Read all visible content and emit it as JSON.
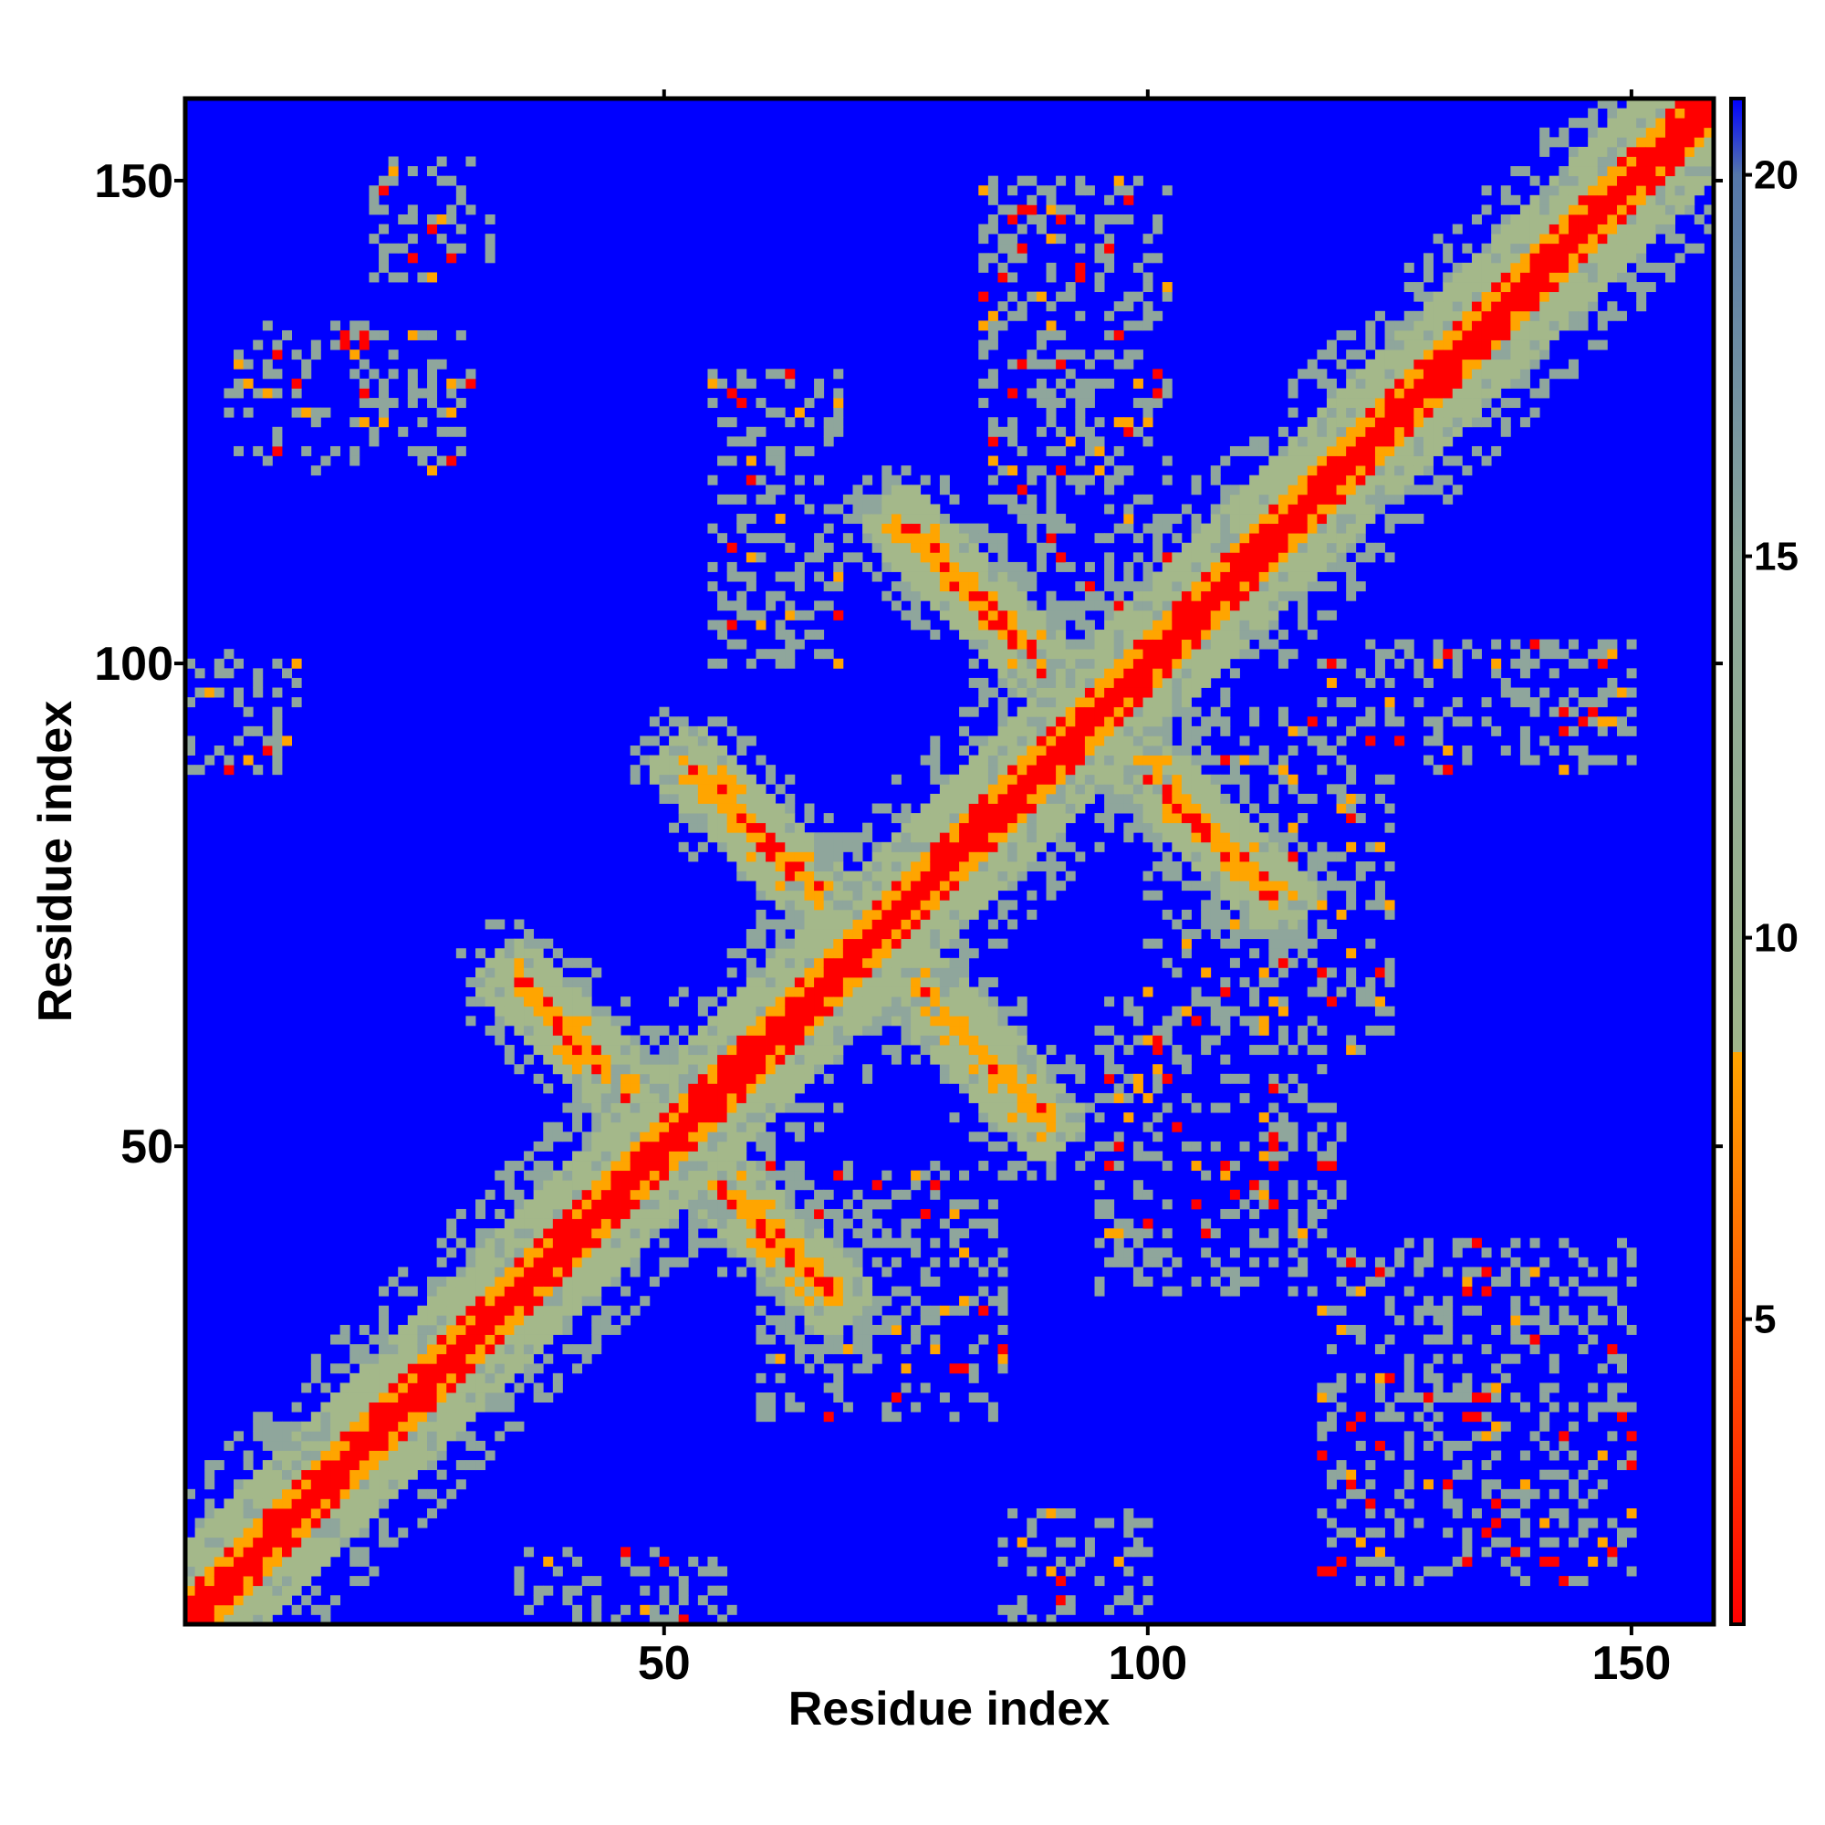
{
  "chart_data": {
    "type": "heatmap",
    "title": "",
    "xlabel": "Residue index",
    "ylabel": "Residue index",
    "xlim": [
      1,
      158
    ],
    "ylim": [
      1,
      158
    ],
    "x_ticks": [
      50,
      100,
      150
    ],
    "y_ticks": [
      50,
      100,
      150
    ],
    "colorbar": {
      "range": [
        1,
        21
      ],
      "ticks": [
        5,
        10,
        15,
        20
      ],
      "stops": [
        {
          "value": 1,
          "color": "#ff0000"
        },
        {
          "value": 4,
          "color": "#ff4400"
        },
        {
          "value": 8.5,
          "color": "#ffa500"
        },
        {
          "value": 8.5,
          "color": "#9fb58a"
        },
        {
          "value": 15,
          "color": "#8aa69a"
        },
        {
          "value": 20,
          "color": "#5577aa"
        },
        {
          "value": 21,
          "color": "#0000ff"
        }
      ]
    },
    "cell_colors": {
      "background": "#0000ff",
      "contact": "#ff0000",
      "near": "#ffa500",
      "mid": "#a4b88a",
      "far": "#8fa69c"
    },
    "structure": {
      "diagonal": {
        "from": 1,
        "to": 158
      },
      "antiparallel_bands": [
        {
          "from": [
            75,
            114
          ],
          "to": [
            113,
            76
          ]
        },
        {
          "from": [
            53,
            89
          ],
          "to": [
            67,
            75
          ]
        },
        {
          "from": [
            35,
            67
          ],
          "to": [
            51,
            51
          ]
        },
        {
          "from": [
            51,
            51
          ],
          "to": [
            67,
            35
          ]
        },
        {
          "from": [
            72,
            71
          ],
          "to": [
            89,
            53
          ]
        }
      ],
      "parallel_bands": [
        {
          "from": [
            2,
            2
          ],
          "to": [
            30,
            30
          ],
          "offset": 4
        },
        {
          "from": [
            120,
            120
          ],
          "to": [
            158,
            158
          ],
          "offset": 4
        }
      ],
      "scatter_regions": [
        {
          "x": [
            20,
            32
          ],
          "y": [
            140,
            152
          ]
        },
        {
          "x": [
            5,
            30
          ],
          "y": [
            120,
            135
          ]
        },
        {
          "x": [
            1,
            12
          ],
          "y": [
            89,
            101
          ]
        },
        {
          "x": [
            83,
            102
          ],
          "y": [
            105,
            150
          ]
        },
        {
          "x": [
            118,
            150
          ],
          "y": [
            89,
            102
          ]
        },
        {
          "x": [
            118,
            150
          ],
          "y": [
            5,
            40
          ]
        },
        {
          "x": [
            85,
            100
          ],
          "y": [
            1,
            12
          ]
        },
        {
          "x": [
            35,
            57
          ],
          "y": [
            1,
            8
          ]
        },
        {
          "x": [
            55,
            68
          ],
          "y": [
            100,
            130
          ]
        },
        {
          "x": [
            100,
            125
          ],
          "y": [
            60,
            95
          ]
        },
        {
          "x": [
            95,
            120
          ],
          "y": [
            35,
            65
          ]
        },
        {
          "x": [
            60,
            85
          ],
          "y": [
            22,
            48
          ]
        }
      ]
    }
  }
}
